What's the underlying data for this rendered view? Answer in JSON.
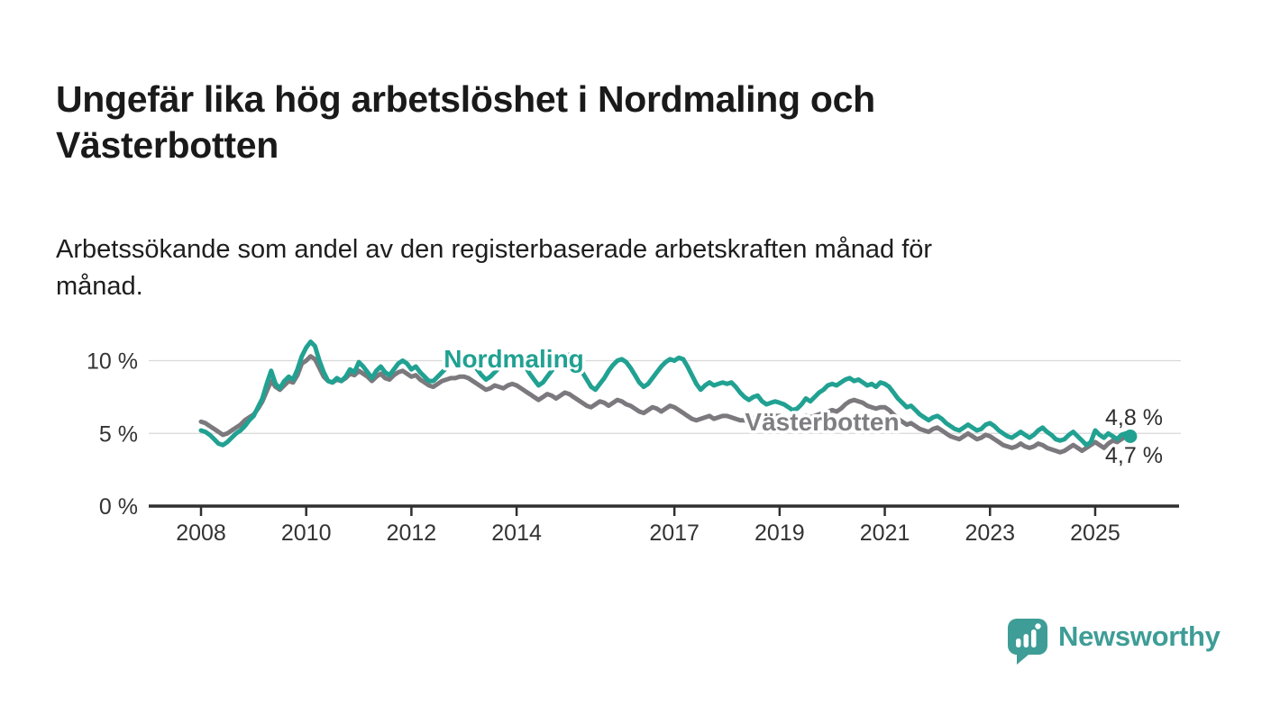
{
  "header": {
    "title": "Ungefär lika hög arbetslöshet i Nordmaling och Västerbotten",
    "subtitle": "Arbetssökande som andel av den registerbaserade arbetskraften månad för månad."
  },
  "chart_data": {
    "type": "line",
    "title": "Ungefär lika hög arbetslöshet i Nordmaling och Västerbotten",
    "subtitle": "Arbetssökande som andel av den registerbaserade arbetskraften månad för månad.",
    "x_start": 2008,
    "x_step": "1 month",
    "x_end": "2025-09",
    "xlim": [
      2007.0,
      2026.6
    ],
    "ylim": [
      0,
      12
    ],
    "grid": "horizontal",
    "x_axis": {
      "ticks": [
        {
          "year": 2008,
          "label": "2008"
        },
        {
          "year": 2010,
          "label": "2010"
        },
        {
          "year": 2012,
          "label": "2012"
        },
        {
          "year": 2014,
          "label": "2014"
        },
        {
          "year": 2017,
          "label": "2017"
        },
        {
          "year": 2019,
          "label": "2019"
        },
        {
          "year": 2021,
          "label": "2021"
        },
        {
          "year": 2023,
          "label": "2023"
        },
        {
          "year": 2025,
          "label": "2025"
        }
      ]
    },
    "y_axis": {
      "unit": "%",
      "ticks": [
        {
          "value": 0,
          "label": "0 %"
        },
        {
          "value": 5,
          "label": "5 %"
        },
        {
          "value": 10,
          "label": "10 %"
        }
      ]
    },
    "series": [
      {
        "name": "Nordmaling",
        "color": "#21a192",
        "end_label": "4,8 %",
        "end_value": 4.8,
        "values": [
          5.2,
          5.1,
          4.9,
          4.6,
          4.3,
          4.2,
          4.4,
          4.7,
          5.0,
          5.2,
          5.5,
          5.9,
          6.2,
          6.8,
          7.4,
          8.4,
          9.3,
          8.4,
          8.1,
          8.6,
          8.9,
          8.7,
          9.4,
          10.3,
          10.9,
          11.3,
          11.0,
          10.0,
          9.2,
          8.6,
          8.5,
          8.8,
          8.6,
          8.9,
          9.4,
          9.2,
          9.9,
          9.6,
          9.2,
          8.8,
          9.3,
          9.6,
          9.2,
          9.0,
          9.4,
          9.8,
          10.0,
          9.8,
          9.4,
          9.6,
          9.2,
          8.9,
          8.6,
          8.6,
          8.9,
          9.2,
          9.5,
          9.8,
          10.0,
          10.2,
          10.2,
          10.1,
          9.8,
          9.4,
          9.0,
          8.7,
          8.9,
          9.2,
          9.5,
          9.8,
          10.1,
          10.2,
          10.1,
          9.9,
          9.6,
          9.1,
          8.7,
          8.3,
          8.5,
          8.9,
          9.3,
          9.7,
          10.0,
          10.3,
          10.4,
          10.1,
          9.7,
          9.2,
          8.7,
          8.2,
          8.0,
          8.4,
          8.8,
          9.3,
          9.7,
          10.0,
          10.1,
          9.9,
          9.5,
          9.0,
          8.5,
          8.2,
          8.4,
          8.8,
          9.2,
          9.6,
          9.9,
          10.1,
          10.0,
          10.2,
          10.1,
          9.6,
          9.0,
          8.4,
          8.0,
          8.3,
          8.5,
          8.3,
          8.4,
          8.5,
          8.4,
          8.5,
          8.2,
          7.8,
          7.5,
          7.3,
          7.5,
          7.6,
          7.2,
          7.0,
          7.1,
          7.2,
          7.1,
          7.0,
          6.8,
          6.6,
          6.7,
          7.0,
          7.4,
          7.2,
          7.5,
          7.8,
          8.0,
          8.3,
          8.4,
          8.3,
          8.5,
          8.7,
          8.8,
          8.6,
          8.7,
          8.5,
          8.3,
          8.4,
          8.2,
          8.5,
          8.4,
          8.2,
          7.8,
          7.4,
          7.1,
          6.8,
          6.9,
          6.6,
          6.3,
          6.1,
          5.9,
          6.1,
          6.2,
          6.0,
          5.7,
          5.5,
          5.3,
          5.2,
          5.4,
          5.6,
          5.4,
          5.2,
          5.3,
          5.6,
          5.7,
          5.5,
          5.2,
          5.0,
          4.8,
          4.7,
          4.9,
          5.1,
          4.9,
          4.7,
          4.9,
          5.2,
          5.4,
          5.1,
          4.9,
          4.6,
          4.5,
          4.6,
          4.9,
          5.1,
          4.8,
          4.5,
          4.2,
          4.4,
          5.2,
          4.9,
          4.7,
          5.0,
          4.8,
          4.6,
          4.9,
          5.0,
          4.8
        ]
      },
      {
        "name": "Västerbotten",
        "color": "#7b797d",
        "end_label": "4,7 %",
        "end_value": 4.7,
        "values": [
          5.8,
          5.7,
          5.5,
          5.3,
          5.1,
          4.9,
          5.0,
          5.2,
          5.4,
          5.6,
          5.9,
          6.1,
          6.3,
          6.7,
          7.2,
          7.9,
          8.6,
          8.2,
          8.0,
          8.3,
          8.6,
          8.5,
          9.0,
          9.8,
          10.0,
          10.3,
          10.1,
          9.5,
          8.9,
          8.6,
          8.5,
          8.7,
          8.6,
          8.8,
          9.1,
          9.0,
          9.3,
          9.1,
          8.9,
          8.6,
          8.9,
          9.1,
          8.8,
          8.7,
          9.0,
          9.2,
          9.3,
          9.1,
          8.9,
          9.0,
          8.7,
          8.5,
          8.3,
          8.2,
          8.4,
          8.6,
          8.7,
          8.8,
          8.8,
          8.9,
          8.9,
          8.8,
          8.6,
          8.4,
          8.2,
          8.0,
          8.1,
          8.3,
          8.2,
          8.1,
          8.3,
          8.4,
          8.3,
          8.1,
          7.9,
          7.7,
          7.5,
          7.3,
          7.5,
          7.7,
          7.6,
          7.4,
          7.6,
          7.8,
          7.7,
          7.5,
          7.3,
          7.1,
          6.9,
          6.8,
          7.0,
          7.2,
          7.1,
          6.9,
          7.1,
          7.3,
          7.2,
          7.0,
          6.9,
          6.7,
          6.5,
          6.4,
          6.6,
          6.8,
          6.7,
          6.5,
          6.7,
          6.9,
          6.8,
          6.6,
          6.4,
          6.2,
          6.0,
          5.9,
          6.0,
          6.1,
          6.2,
          6.0,
          6.1,
          6.2,
          6.2,
          6.1,
          6.0,
          5.9,
          5.9,
          5.8,
          6.0,
          6.2,
          6.1,
          5.9,
          6.0,
          6.2,
          6.2,
          6.1,
          6.0,
          5.9,
          5.9,
          6.0,
          6.2,
          6.1,
          6.2,
          6.3,
          6.4,
          6.5,
          6.6,
          6.5,
          6.7,
          7.0,
          7.2,
          7.3,
          7.2,
          7.1,
          6.9,
          6.8,
          6.7,
          6.8,
          6.8,
          6.6,
          6.3,
          6.0,
          5.8,
          5.6,
          5.7,
          5.5,
          5.3,
          5.2,
          5.1,
          5.3,
          5.4,
          5.2,
          5.0,
          4.8,
          4.7,
          4.6,
          4.8,
          5.0,
          4.8,
          4.6,
          4.7,
          4.9,
          4.8,
          4.6,
          4.4,
          4.2,
          4.1,
          4.0,
          4.1,
          4.3,
          4.1,
          4.0,
          4.1,
          4.3,
          4.2,
          4.0,
          3.9,
          3.8,
          3.7,
          3.8,
          4.0,
          4.2,
          4.0,
          3.8,
          4.0,
          4.2,
          4.4,
          4.2,
          4.0,
          4.3,
          4.5,
          4.4,
          4.6,
          4.8,
          4.7
        ]
      }
    ]
  },
  "footer": {
    "brand_name": "Newsworthy",
    "brand_color": "#3e9d96",
    "logo_icon": "bar-chart-speech-bubble-icon"
  }
}
